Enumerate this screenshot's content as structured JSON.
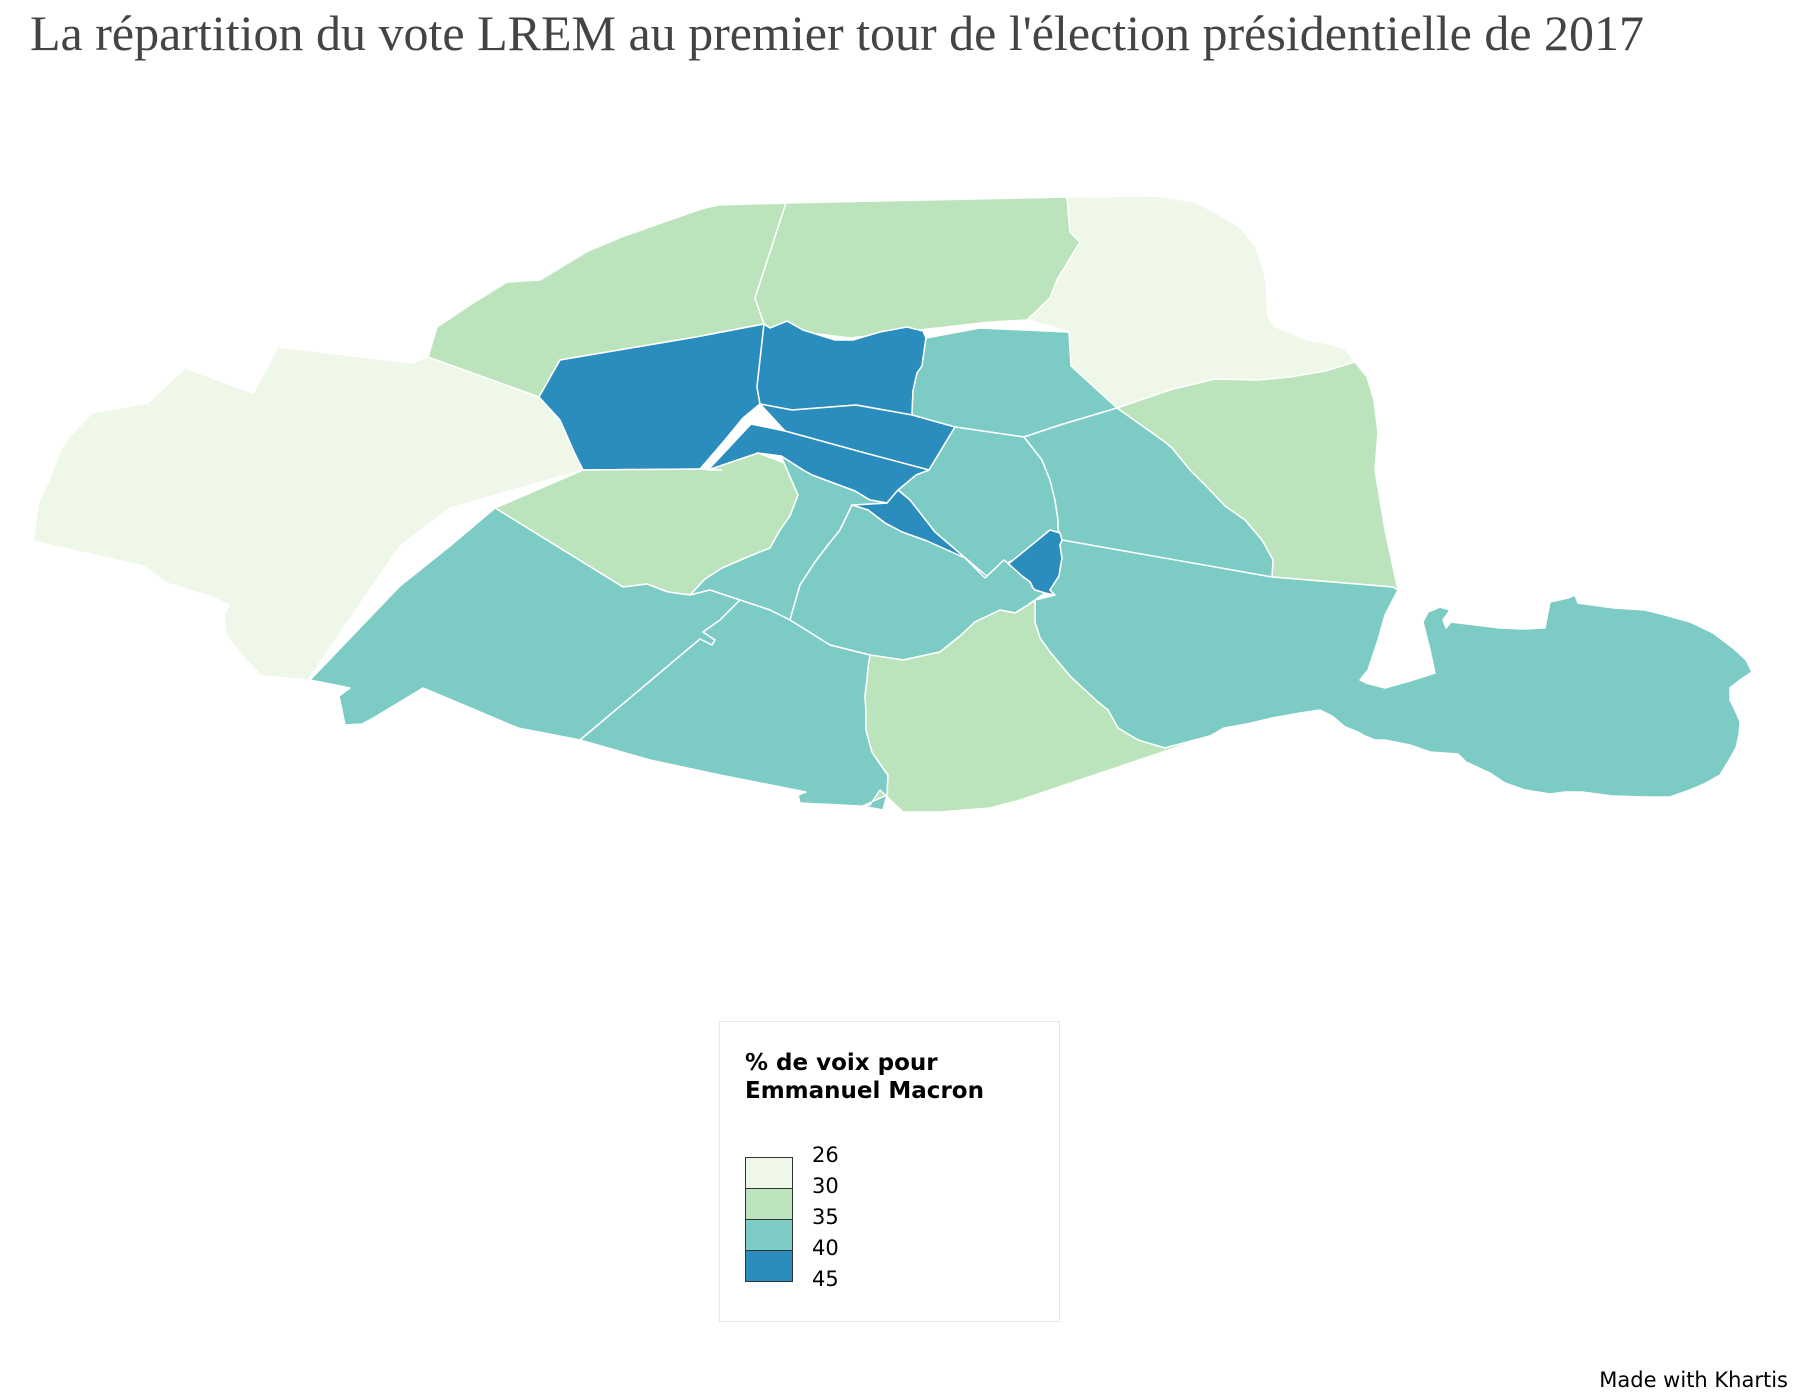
{
  "title": "La répartition du vote LREM au premier tour de l'élection présidentielle de 2017",
  "map": {
    "classes": [
      {
        "min": 26,
        "max": 30,
        "color": "#eff8e8"
      },
      {
        "min": 30,
        "max": 35,
        "color": "#bbe4bc"
      },
      {
        "min": 35,
        "max": 40,
        "color": "#7ccbc4"
      },
      {
        "min": 40,
        "max": 45,
        "color": "#2b8cbe"
      }
    ],
    "arrondissements": [
      {
        "id": "1",
        "class": 3
      },
      {
        "id": "2",
        "class": 3
      },
      {
        "id": "3",
        "class": 2
      },
      {
        "id": "4",
        "class": 3
      },
      {
        "id": "5",
        "class": 2
      },
      {
        "id": "6",
        "class": 2
      },
      {
        "id": "7",
        "class": 1
      },
      {
        "id": "8",
        "class": 3
      },
      {
        "id": "9",
        "class": 3
      },
      {
        "id": "10",
        "class": 2
      },
      {
        "id": "11",
        "class": 2
      },
      {
        "id": "12",
        "class": 2
      },
      {
        "id": "13",
        "class": 1
      },
      {
        "id": "14",
        "class": 2
      },
      {
        "id": "15",
        "class": 2
      },
      {
        "id": "16",
        "class": 0
      },
      {
        "id": "17",
        "class": 1
      },
      {
        "id": "18",
        "class": 1
      },
      {
        "id": "19",
        "class": 0
      },
      {
        "id": "20",
        "class": 1
      }
    ]
  },
  "legend": {
    "title_line1": "% de voix pour",
    "title_line2": "Emmanuel Macron",
    "ticks": [
      "26",
      "30",
      "35",
      "40",
      "45"
    ]
  },
  "credit": "Made with Khartis"
}
